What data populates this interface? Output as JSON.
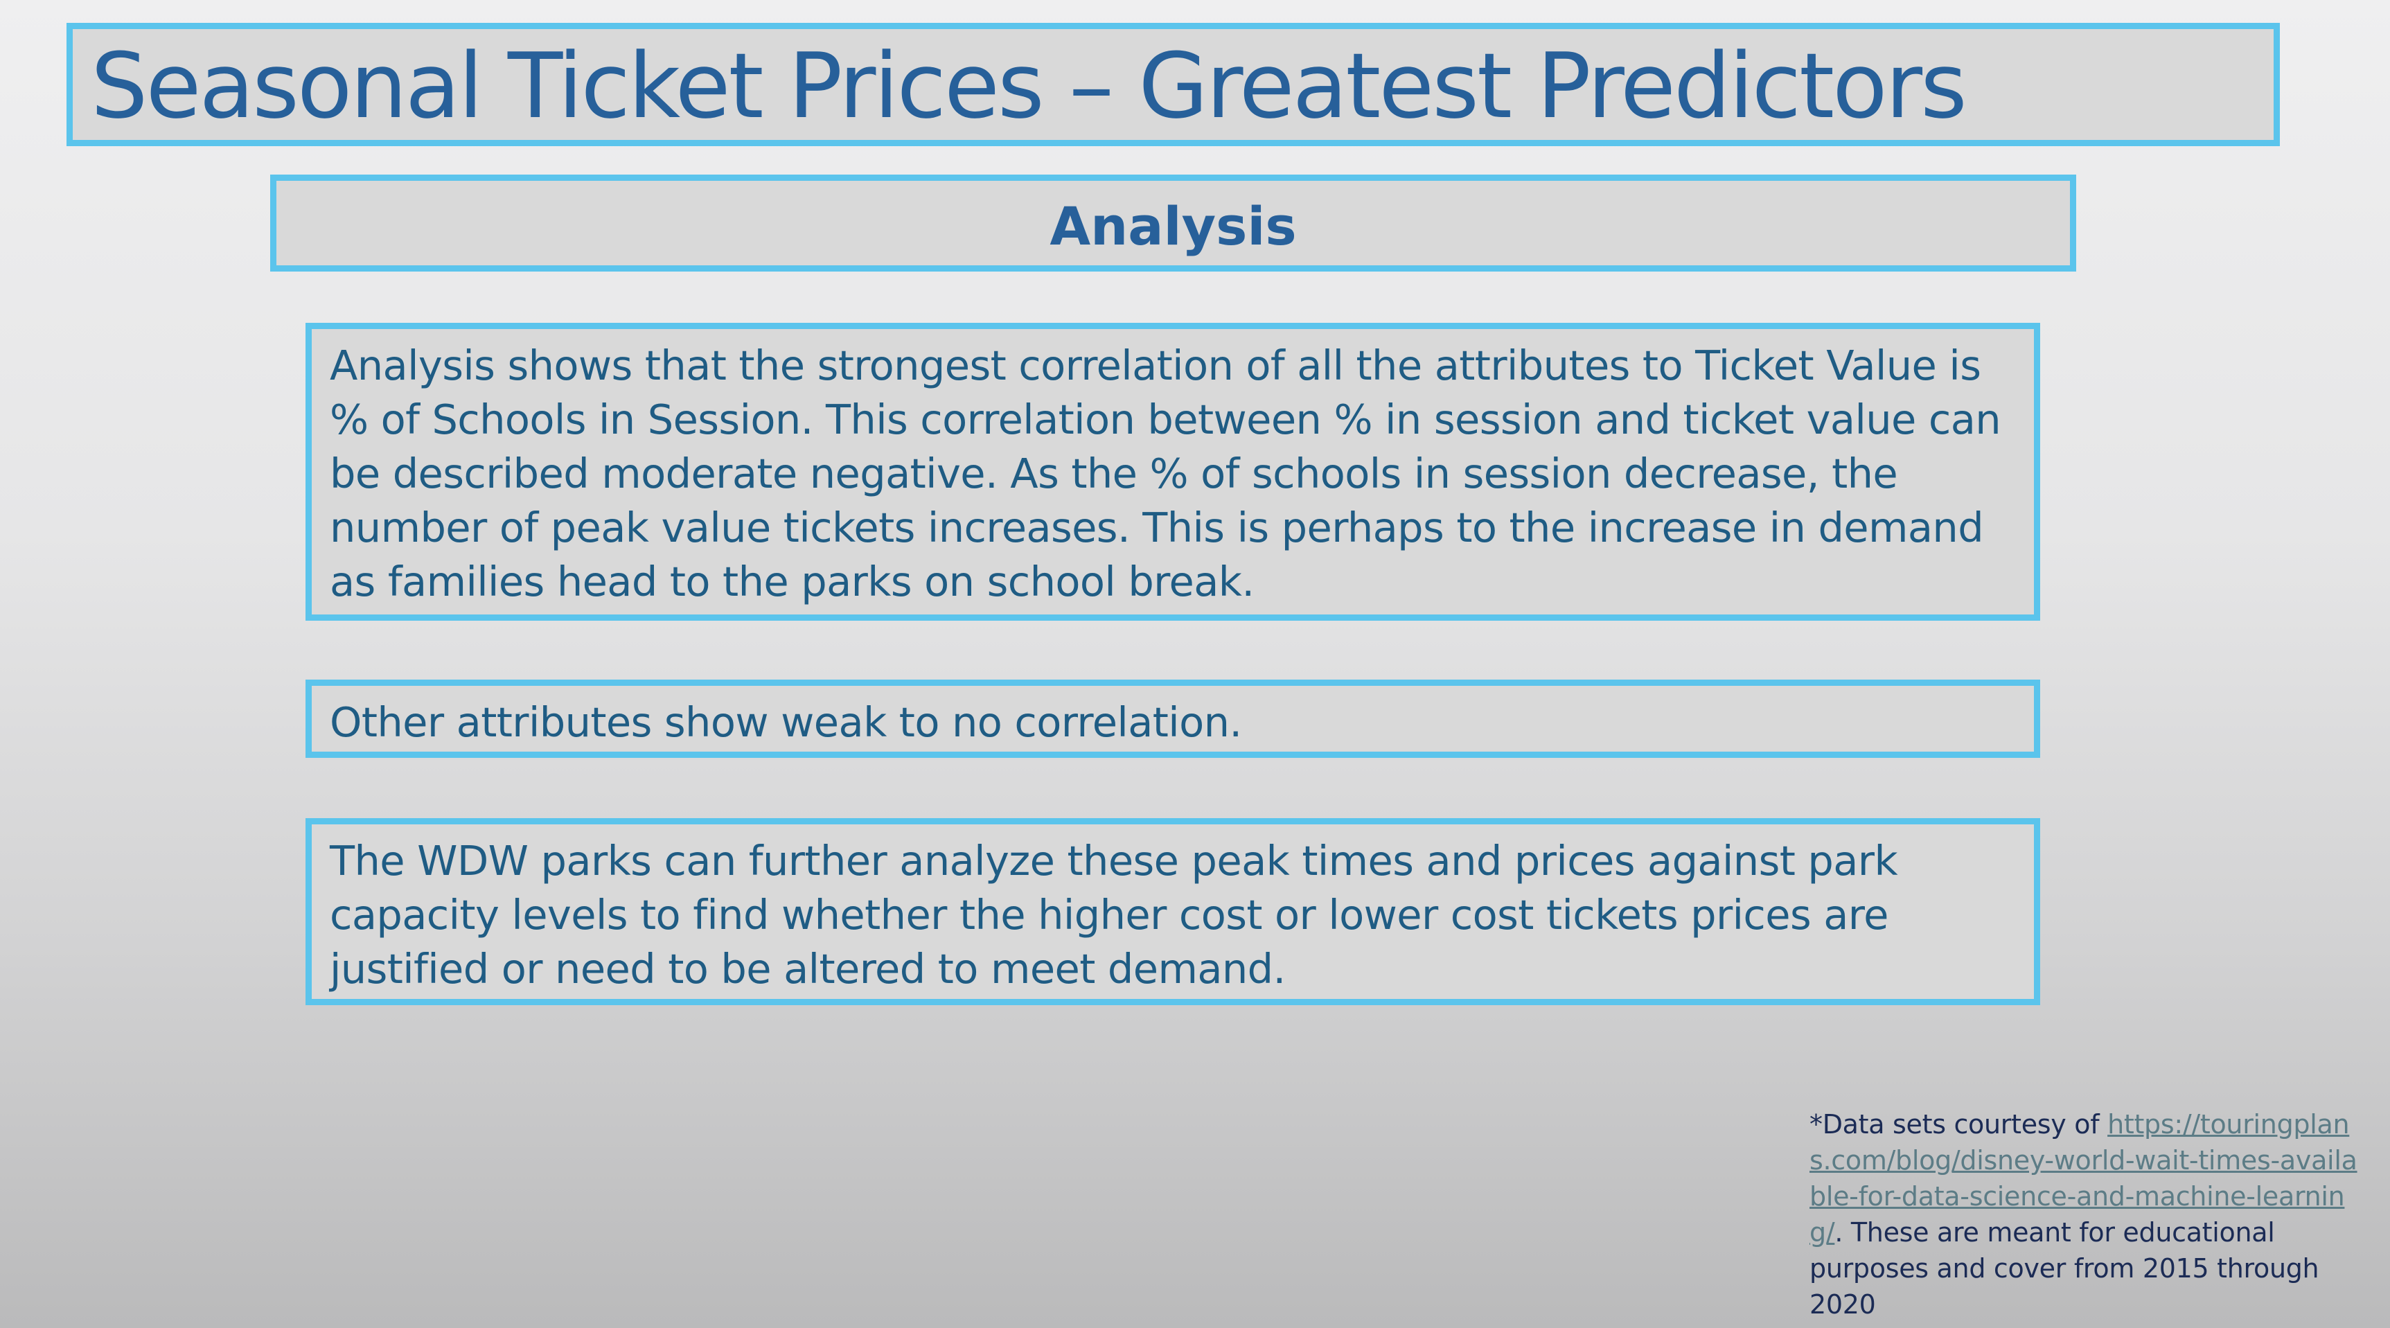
{
  "slide": {
    "title": "Seasonal Ticket Prices – Greatest Predictors",
    "subtitle": "Analysis",
    "paragraphs": [
      "Analysis shows that the strongest correlation of all the attributes to Ticket Value is % of Schools in Session. This correlation between % in session and ticket value can be described moderate negative. As the % of schools in session decrease, the number of peak value tickets increases.  This is perhaps to the increase in demand as families head to the parks on school break.",
      "Other attributes show weak to no correlation.",
      "The WDW parks can further analyze these peak times and prices against park capacity levels to find whether the higher cost or lower cost tickets prices are justified or need to be altered to meet demand."
    ],
    "footnote": {
      "prefix": "*Data sets courtesy of ",
      "link_text": "https://touringplans.com/blog/disney-world-wait-times-available-for-data-science-and-machine-learning/",
      "suffix": ". These are meant for educational purposes and cover from 2015 through 2020"
    },
    "colors": {
      "border": "#5bc4ec",
      "box_fill": "#d9d9d9",
      "title": "#27609a",
      "body_text": "#1f5c84",
      "footnote_text": "#1b2b55",
      "link": "#5c7c86"
    }
  }
}
